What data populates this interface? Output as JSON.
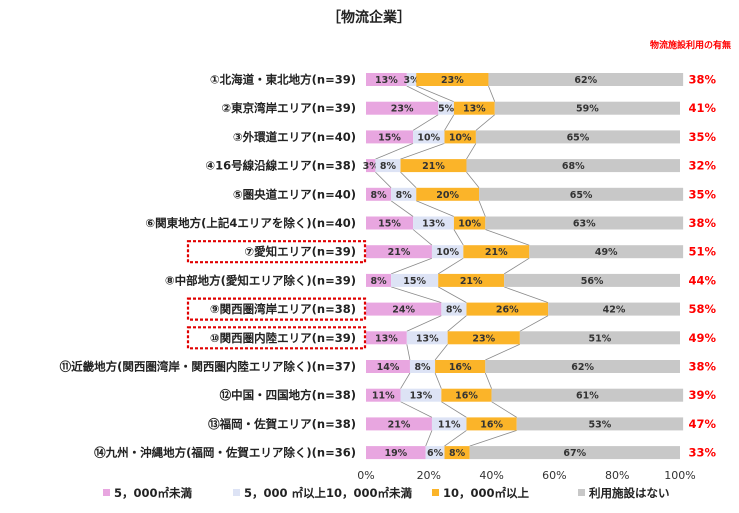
{
  "chart_data": {
    "type": "bar",
    "stacked": true,
    "orientation": "horizontal",
    "title": "［物流企業］",
    "right_header": "物流施設利用の有無",
    "categories": [
      "①北海道・東北地方(n=39)",
      "②東京湾岸エリア(n=39)",
      "③外環道エリア(n=40)",
      "④16号線沿線エリア(n=38)",
      "⑤圏央道エリア(n=40)",
      "⑥関東地方(上記4エリアを除く)(n=40)",
      "⑦愛知エリア(n=39)",
      "⑧中部地方(愛知エリア除く)(n=39)",
      "⑨関西圏湾岸エリア(n=38)",
      "⑩関西圏内陸エリア(n=39)",
      "⑪近畿地方(関西圏湾岸・関西圏内陸エリア除く)(n=37)",
      "⑫中国・四国地方(n=38)",
      "⑬福岡・佐賀エリア(n=38)",
      "⑭九州・沖縄地方(福岡・佐賀エリア除く)(n=36)"
    ],
    "series": [
      {
        "name": "5，000㎡未満",
        "color": "#e8a6e0",
        "values": [
          13,
          23,
          15,
          3,
          8,
          15,
          21,
          8,
          24,
          13,
          14,
          11,
          21,
          19
        ]
      },
      {
        "name": "5，000 ㎡以上10，000㎡未満",
        "color": "#dde3f5",
        "values": [
          3,
          5,
          10,
          8,
          8,
          13,
          10,
          15,
          8,
          13,
          8,
          13,
          11,
          6
        ]
      },
      {
        "name": "10，000㎡以上",
        "color": "#fbb429",
        "values": [
          23,
          13,
          10,
          21,
          20,
          10,
          21,
          21,
          26,
          23,
          16,
          16,
          16,
          8
        ]
      },
      {
        "name": "利用施設はない",
        "color": "#c8c8c8",
        "values": [
          62,
          59,
          65,
          68,
          65,
          63,
          49,
          56,
          42,
          51,
          62,
          61,
          53,
          67
        ]
      }
    ],
    "usage_rate": [
      "38%",
      "41%",
      "35%",
      "32%",
      "35%",
      "38%",
      "51%",
      "44%",
      "58%",
      "49%",
      "38%",
      "39%",
      "47%",
      "33%"
    ],
    "highlighted": [
      "⑦愛知エリア(n=39)",
      "⑨関西圏湾岸エリア(n=38)",
      "⑩関西圏内陸エリア(n=39)"
    ],
    "xlim": [
      0,
      100
    ],
    "xticks": [
      "0%",
      "20%",
      "40%",
      "60%",
      "80%",
      "100%"
    ],
    "legend_position": "bottom"
  }
}
